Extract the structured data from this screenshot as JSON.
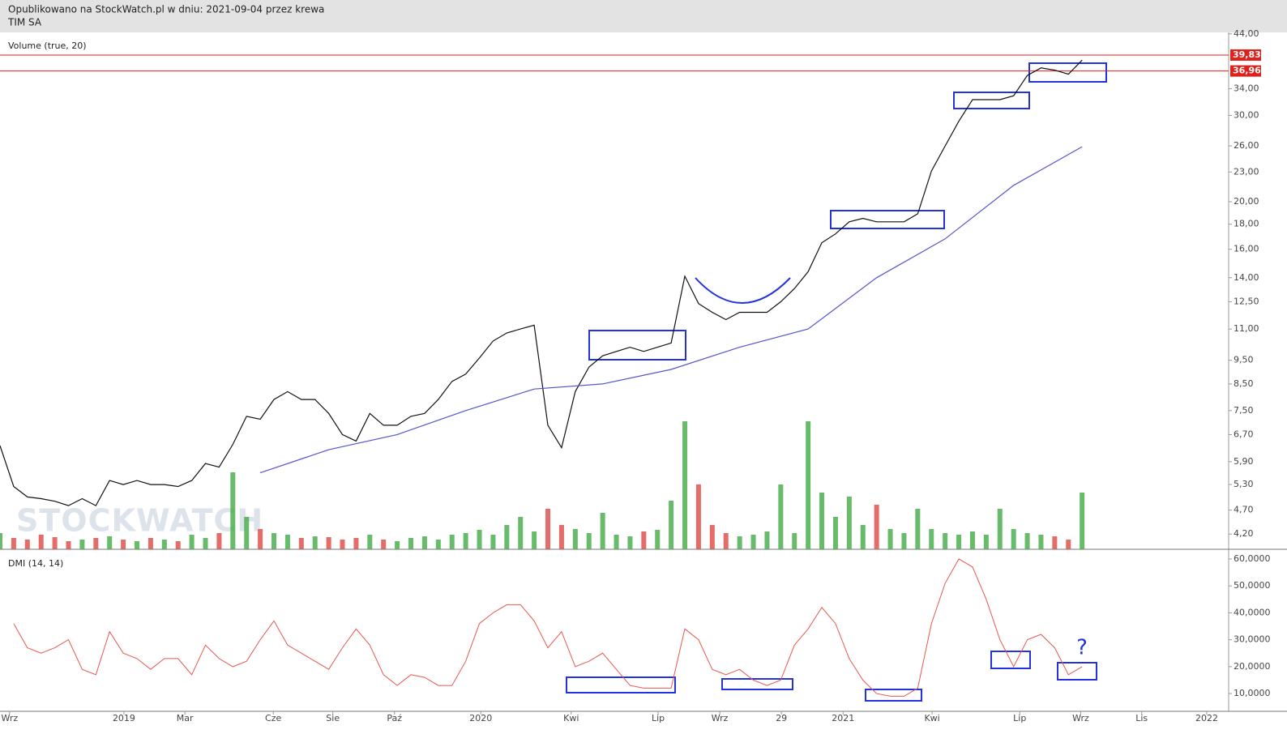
{
  "header": {
    "title": "Opublikowano na StockWatch.pl w dniu: 2021-09-04 przez krewa",
    "subtitle": "TIM SA",
    "watermark": "STOCKWATCH"
  },
  "chart_data": [
    {
      "type": "line",
      "title": "Volume (true, 20)",
      "log_scale": true,
      "xlim": [
        0,
        179.4
      ],
      "ylim": [
        3.91,
        44.3
      ],
      "yticks": [
        {
          "value": 44,
          "label": "44,00"
        },
        {
          "value": 34,
          "label": "34,00"
        },
        {
          "value": 30,
          "label": "30,00"
        },
        {
          "value": 26,
          "label": "26,00"
        },
        {
          "value": 23,
          "label": "23,00"
        },
        {
          "value": 20,
          "label": "20,00"
        },
        {
          "value": 18,
          "label": "18,00"
        },
        {
          "value": 16,
          "label": "16,00"
        },
        {
          "value": 14,
          "label": "14,00"
        },
        {
          "value": 12.5,
          "label": "12,50"
        },
        {
          "value": 11,
          "label": "11,00"
        },
        {
          "value": 9.5,
          "label": "9,50"
        },
        {
          "value": 8.5,
          "label": "8,50"
        },
        {
          "value": 7.5,
          "label": "7,50"
        },
        {
          "value": 6.7,
          "label": "6,70"
        },
        {
          "value": 5.9,
          "label": "5,90"
        },
        {
          "value": 5.3,
          "label": "5,30"
        },
        {
          "value": 4.7,
          "label": "4,70"
        },
        {
          "value": 4.2,
          "label": "4,20"
        }
      ],
      "hlines": [
        {
          "value": 39.83,
          "label": "39,83",
          "color": "#e0201a"
        },
        {
          "value": 36.96,
          "label": "36,96",
          "color": "#e0201a"
        }
      ],
      "x": [
        0,
        2,
        4,
        6,
        8,
        10,
        12,
        14,
        16,
        18,
        20,
        22,
        24,
        26,
        28,
        30,
        32,
        34,
        36,
        38,
        40,
        42,
        44,
        46,
        48,
        50,
        52,
        54,
        56,
        58,
        60,
        62,
        64,
        66,
        68,
        70,
        72,
        74,
        76,
        78,
        80,
        82,
        84,
        86,
        88,
        90,
        92,
        94,
        96,
        98,
        100,
        102,
        104,
        106,
        108,
        110,
        112,
        114,
        116,
        118,
        120,
        122,
        124,
        126,
        128,
        130,
        132,
        134,
        136,
        138,
        140,
        142,
        144,
        146,
        148,
        150,
        152,
        154,
        156,
        158
      ],
      "series": [
        {
          "color": "#111111",
          "values": [
            6.36,
            5.25,
            5.0,
            4.96,
            4.9,
            4.8,
            4.96,
            4.8,
            5.4,
            5.3,
            5.4,
            5.3,
            5.3,
            5.25,
            5.4,
            5.85,
            5.75,
            6.4,
            7.3,
            7.2,
            7.9,
            8.2,
            7.9,
            7.9,
            7.4,
            6.7,
            6.5,
            7.4,
            7.0,
            7.0,
            7.3,
            7.4,
            7.9,
            8.6,
            8.9,
            9.6,
            10.4,
            10.8,
            11.0,
            11.2,
            7.0,
            6.3,
            8.2,
            9.2,
            9.7,
            9.9,
            10.1,
            9.9,
            10.1,
            10.3,
            14.1,
            12.4,
            11.9,
            11.5,
            11.9,
            11.9,
            11.9,
            12.5,
            13.3,
            14.4,
            16.5,
            17.2,
            18.2,
            18.5,
            18.2,
            18.2,
            18.2,
            18.9,
            23.1,
            26.0,
            29.2,
            32.3,
            32.3,
            32.3,
            32.9,
            36.2,
            37.5,
            37.1,
            36.4,
            38.9
          ]
        },
        {
          "color": "#5555cc",
          "x": [
            38,
            48,
            58,
            68,
            78,
            88,
            98,
            108,
            118,
            128,
            138,
            148,
            158
          ],
          "values": [
            5.6,
            6.24,
            6.7,
            7.5,
            8.3,
            8.5,
            9.1,
            10.1,
            11.0,
            14.0,
            16.8,
            21.6,
            25.9
          ]
        }
      ],
      "volume": {
        "colors": [
          "#4caf50",
          "#e0544f"
        ],
        "values": [
          20,
          14,
          12,
          18,
          15,
          10,
          12,
          14,
          16,
          12,
          10,
          14,
          12,
          10,
          18,
          14,
          20,
          95,
          40,
          25,
          20,
          18,
          14,
          16,
          15,
          12,
          14,
          18,
          12,
          10,
          14,
          16,
          12,
          18,
          20,
          24,
          18,
          30,
          40,
          22,
          50,
          30,
          25,
          20,
          45,
          18,
          16,
          22,
          24,
          60,
          158,
          80,
          30,
          20,
          16,
          18,
          22,
          80,
          20,
          158,
          70,
          40,
          65,
          30,
          55,
          25,
          20,
          50,
          25,
          20,
          18,
          22,
          18,
          50,
          25,
          20,
          18,
          16,
          12,
          70
        ]
      }
    },
    {
      "type": "line",
      "title": "DMI (14, 14)",
      "annotation": "?",
      "xlim": [
        0,
        179.4
      ],
      "ylim": [
        3.4,
        63.6
      ],
      "yticks": [
        {
          "value": 60,
          "label": "60,0000"
        },
        {
          "value": 50,
          "label": "50,0000"
        },
        {
          "value": 40,
          "label": "40,0000"
        },
        {
          "value": 30,
          "label": "30,0000"
        },
        {
          "value": 20,
          "label": "20,0000"
        },
        {
          "value": 10,
          "label": "10,0000"
        }
      ],
      "xticks": [
        {
          "value": 1.4,
          "label": "Wrz"
        },
        {
          "value": 18.1,
          "label": "2019"
        },
        {
          "value": 27,
          "label": "Mar"
        },
        {
          "value": 39.9,
          "label": "Cze"
        },
        {
          "value": 48.6,
          "label": "Sie"
        },
        {
          "value": 57.6,
          "label": "Paź"
        },
        {
          "value": 70.2,
          "label": "2020"
        },
        {
          "value": 83.4,
          "label": "Kwi"
        },
        {
          "value": 96.1,
          "label": "Lip"
        },
        {
          "value": 105.1,
          "label": "Wrz"
        },
        {
          "value": 114.1,
          "label": "29"
        },
        {
          "value": 123.1,
          "label": "2021"
        },
        {
          "value": 136.1,
          "label": "Kwi"
        },
        {
          "value": 148.9,
          "label": "Lip"
        },
        {
          "value": 157.8,
          "label": "Wrz"
        },
        {
          "value": 166.7,
          "label": "Lis"
        },
        {
          "value": 176.2,
          "label": "2022"
        }
      ],
      "x": [
        0,
        2,
        4,
        6,
        8,
        10,
        12,
        14,
        16,
        18,
        20,
        22,
        24,
        26,
        28,
        30,
        32,
        34,
        36,
        38,
        40,
        42,
        44,
        46,
        48,
        50,
        52,
        54,
        56,
        58,
        60,
        62,
        64,
        66,
        68,
        70,
        72,
        74,
        76,
        78,
        80,
        82,
        84,
        86,
        88,
        90,
        92,
        94,
        96,
        98,
        100,
        102,
        104,
        106,
        108,
        110,
        112,
        114,
        116,
        118,
        120,
        122,
        124,
        126,
        128,
        130,
        132,
        134,
        136,
        138,
        140,
        142,
        144,
        146,
        148,
        150,
        152,
        154,
        156,
        158
      ],
      "series": [
        {
          "color": "#e8584f",
          "values": [
            null,
            36,
            27,
            25,
            27,
            30,
            19,
            17,
            33,
            25,
            23,
            19,
            23,
            23,
            17,
            28,
            23,
            20,
            22,
            30,
            37,
            28,
            25,
            22,
            19,
            27,
            34,
            28,
            17,
            13,
            17,
            16,
            13,
            13,
            22,
            36,
            40,
            43,
            43,
            37,
            27,
            33,
            20,
            22,
            25,
            19,
            13,
            12,
            12,
            12,
            34,
            30,
            19,
            17,
            19,
            15,
            13,
            15,
            28,
            34,
            42,
            36,
            23,
            15,
            10,
            9,
            9,
            12,
            36,
            51,
            60,
            57,
            45,
            30,
            20,
            30,
            32,
            27,
            17,
            20
          ]
        }
      ]
    }
  ]
}
